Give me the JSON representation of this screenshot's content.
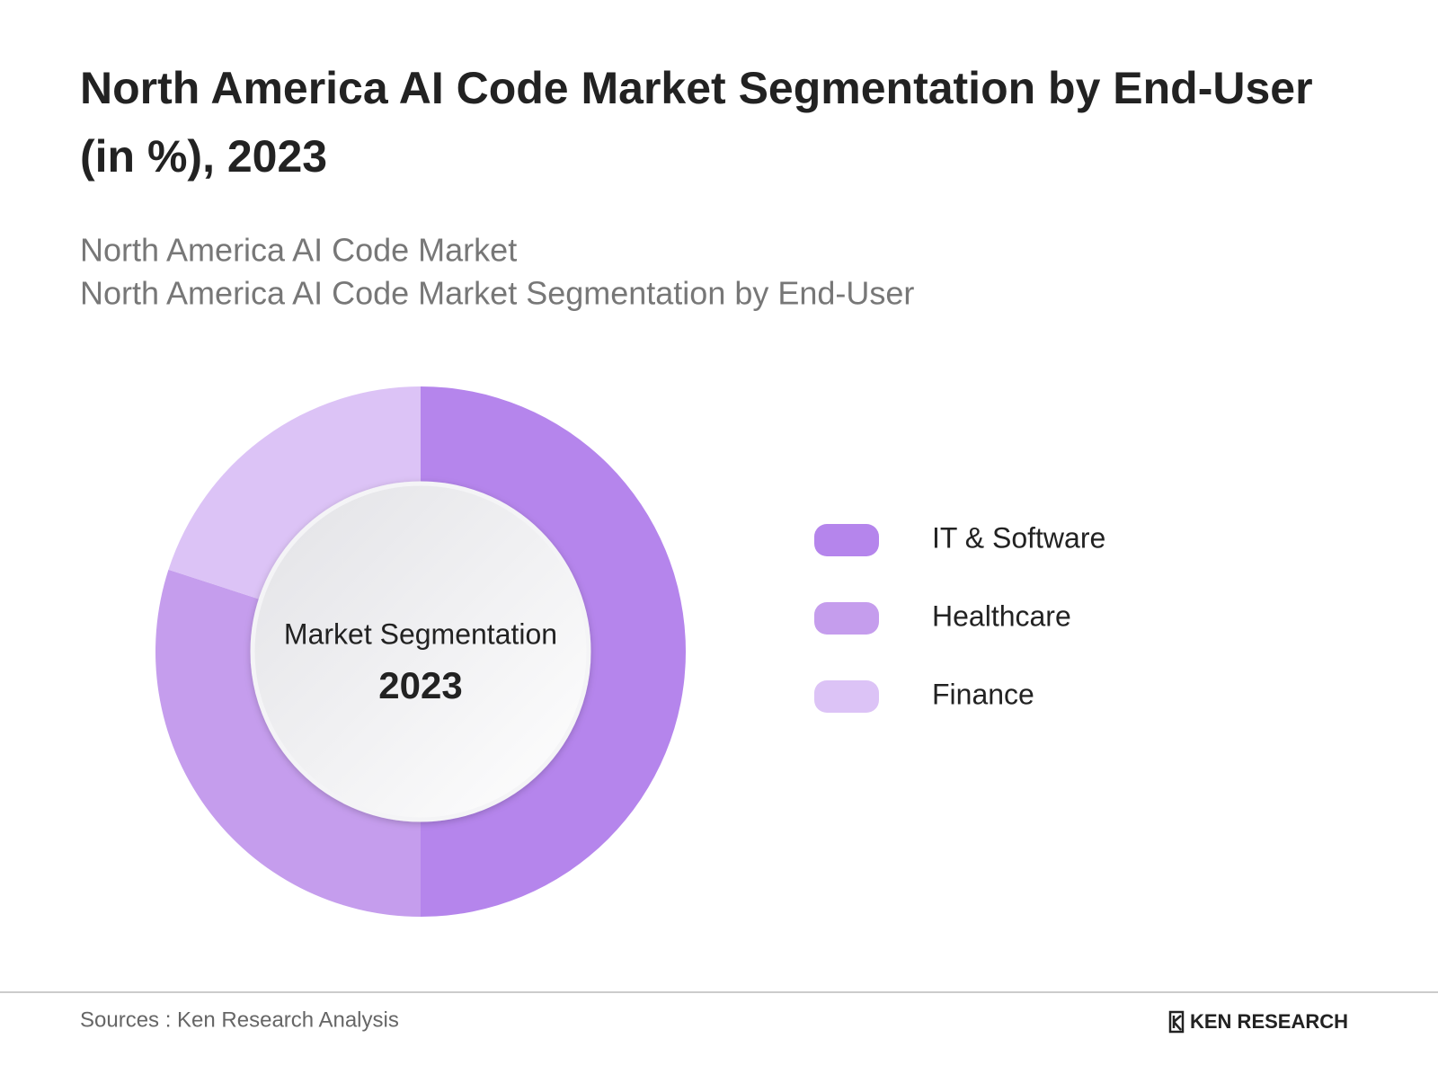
{
  "chart_data": {
    "type": "donut",
    "title_lines": [
      "North America AI Code Market Segmentation by End-User",
      "(in %), 2023"
    ],
    "subtitle_lines": [
      "North America AI Code Market",
      "North America AI Code Market Segmentation by End-User"
    ],
    "center_label": "Market Segmentation",
    "center_year": "2023",
    "categories": [
      "IT & Software",
      "Healthcare",
      "Finance"
    ],
    "values": [
      50,
      30,
      20
    ],
    "colors": [
      "#b585ec",
      "#c59ded",
      "#dcc3f6"
    ],
    "source": "Sources : Ken Research Analysis",
    "brand": "KEN RESEARCH"
  }
}
